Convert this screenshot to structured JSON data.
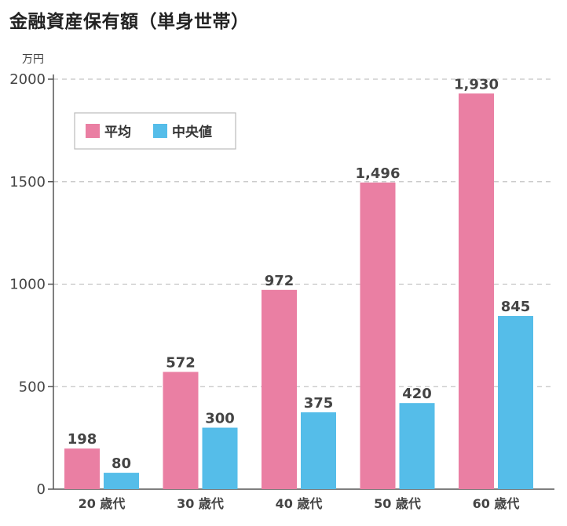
{
  "chart_data": {
    "type": "bar",
    "title": "金融資産保有額（単身世帯）",
    "unit_label": "万円",
    "ylim": [
      0,
      2000
    ],
    "yticks": [
      0,
      500,
      1000,
      1500,
      2000
    ],
    "grid": true,
    "legend_position": "top-left",
    "categories": [
      "20 歳代",
      "30 歳代",
      "40 歳代",
      "50 歳代",
      "60 歳代"
    ],
    "series": [
      {
        "name": "平均",
        "color": "#ea7fa3",
        "values": [
          198,
          572,
          972,
          1496,
          1930
        ],
        "labels": [
          "198",
          "572",
          "972",
          "1,496",
          "1,930"
        ]
      },
      {
        "name": "中央値",
        "color": "#55bde9",
        "values": [
          80,
          300,
          375,
          420,
          845
        ],
        "labels": [
          "80",
          "300",
          "375",
          "420",
          "845"
        ]
      }
    ]
  }
}
